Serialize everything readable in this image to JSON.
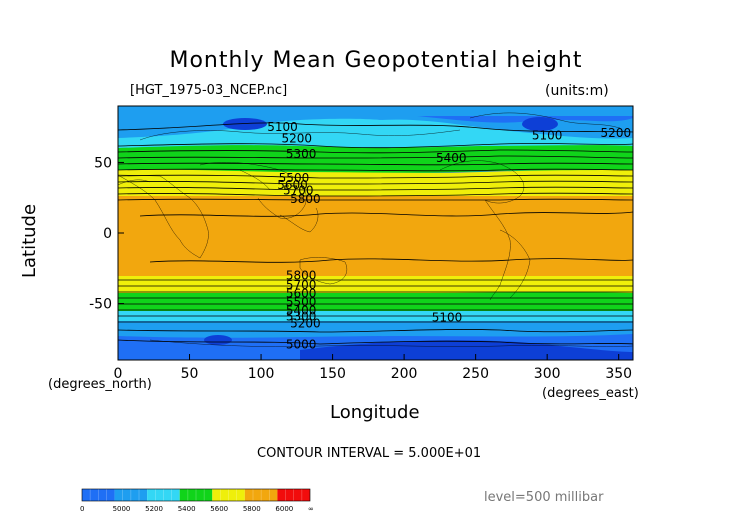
{
  "title": "Monthly Mean Geopotential height",
  "file_label": "[HGT_1975-03_NCEP.nc]",
  "units_label": "(units:m)",
  "contour_interval_text": "CONTOUR INTERVAL = 5.000E+01",
  "level_text": "level=500 millibar",
  "chart_data": {
    "type": "contour",
    "xlabel": "Longitude",
    "ylabel": "Latitude",
    "x_units_label": "(degrees_east)",
    "y_units_label": "(degrees_north)",
    "xlim": [
      0,
      360
    ],
    "ylim": [
      -90,
      90
    ],
    "x_ticks": [
      0,
      50,
      100,
      150,
      200,
      250,
      300,
      350
    ],
    "y_ticks": [
      50,
      0,
      -50
    ],
    "contour_labels": [
      {
        "text": "5100",
        "lon": 115,
        "lat": 75
      },
      {
        "text": "5200",
        "lon": 125,
        "lat": 67
      },
      {
        "text": "5300",
        "lon": 128,
        "lat": 56
      },
      {
        "text": "5400",
        "lon": 233,
        "lat": 53
      },
      {
        "text": "5100",
        "lon": 300,
        "lat": 69
      },
      {
        "text": "5200",
        "lon": 348,
        "lat": 71
      },
      {
        "text": "5500",
        "lon": 123,
        "lat": 39
      },
      {
        "text": "5600",
        "lon": 122,
        "lat": 34
      },
      {
        "text": "5700",
        "lon": 126,
        "lat": 30
      },
      {
        "text": "5800",
        "lon": 131,
        "lat": 24
      },
      {
        "text": "5800",
        "lon": 128,
        "lat": -30
      },
      {
        "text": "5700",
        "lon": 128,
        "lat": -37
      },
      {
        "text": "5600",
        "lon": 128,
        "lat": -43
      },
      {
        "text": "5500",
        "lon": 128,
        "lat": -49
      },
      {
        "text": "5400",
        "lon": 128,
        "lat": -55
      },
      {
        "text": "5300",
        "lon": 128,
        "lat": -59
      },
      {
        "text": "5200",
        "lon": 131,
        "lat": -64
      },
      {
        "text": "5100",
        "lon": 230,
        "lat": -60
      },
      {
        "text": "5000",
        "lon": 128,
        "lat": -79
      }
    ],
    "colorbar": {
      "ticks": [
        "0",
        "5000",
        "5200",
        "5400",
        "5600",
        "5800",
        "6000",
        "∞"
      ],
      "colors": [
        "#1f6ff5",
        "#1e9ef0",
        "#33d7f5",
        "#10d41a",
        "#efef0a",
        "#f2a70e",
        "#f20c0c"
      ]
    }
  }
}
